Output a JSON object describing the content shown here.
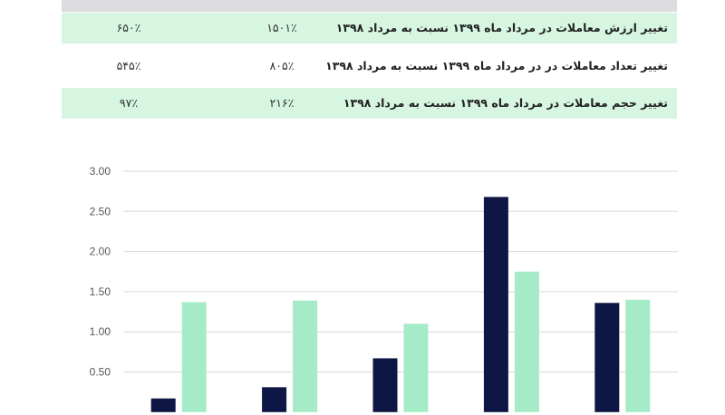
{
  "table": {
    "header": [
      "",
      "",
      ""
    ],
    "rows": [
      {
        "label": "تغییر ارزش معاملات در مرداد ماه ۱۳۹۹ نسبت  به مرداد ۱۳۹۸",
        "col1": "۱۵۰۱٪",
        "col2": "۶۵۰٪",
        "style": "green"
      },
      {
        "label": "تغییر تعداد معاملات در در مرداد ماه ۱۳۹۹ نسبت  به مرداد ۱۳۹۸",
        "col1": "۸۰۵٪",
        "col2": "۵۴۵٪",
        "style": "white"
      },
      {
        "label": "تغییر حجم معاملات در مرداد ماه ۱۳۹۹ نسبت  به مرداد ۱۳۹۸",
        "col1": "۲۱۶٪",
        "col2": "۹۷٪",
        "style": "green"
      }
    ]
  },
  "chart_data": {
    "type": "bar",
    "title": "",
    "xlabel": "",
    "ylabel": "",
    "ylim": [
      0,
      3
    ],
    "yticks": [
      "0.50",
      "1.00",
      "1.50",
      "2.00",
      "2.50",
      "3.00"
    ],
    "categories": [
      "",
      "",
      "",
      "",
      ""
    ],
    "grid": true,
    "series": [
      {
        "color": "#0d1645",
        "values": [
          0.17,
          0.31,
          0.67,
          2.68,
          1.36
        ]
      },
      {
        "color": "#a6ebc7",
        "values": [
          1.37,
          1.39,
          1.1,
          1.75,
          1.4
        ]
      }
    ]
  }
}
